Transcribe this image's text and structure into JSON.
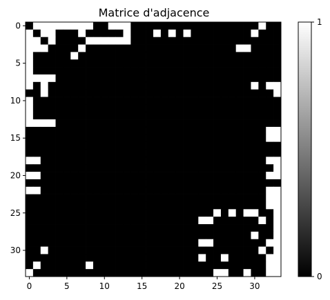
{
  "chart_data": {
    "type": "heatmap",
    "title": "Matrice d'adjacence",
    "xlabel": "",
    "ylabel": "",
    "size": 34,
    "x_ticks": [
      0,
      5,
      10,
      15,
      20,
      25,
      30
    ],
    "y_ticks": [
      0,
      5,
      10,
      15,
      20,
      25,
      30
    ],
    "colorbar": {
      "min": 0,
      "max": 1,
      "ticks": [
        0,
        1
      ],
      "colormap": "gray",
      "low_color": "#000000",
      "high_color": "#ffffff"
    },
    "grid": false,
    "matrix": [
      [
        0,
        1,
        1,
        1,
        1,
        1,
        1,
        1,
        1,
        0,
        0,
        1,
        1,
        1,
        0,
        0,
        0,
        0,
        0,
        0,
        0,
        0,
        0,
        0,
        0,
        0,
        0,
        0,
        0,
        0,
        0,
        1,
        0,
        0
      ],
      [
        1,
        0,
        1,
        1,
        0,
        0,
        0,
        1,
        0,
        0,
        0,
        0,
        0,
        1,
        0,
        0,
        0,
        1,
        0,
        1,
        0,
        1,
        0,
        0,
        0,
        0,
        0,
        0,
        0,
        0,
        1,
        0,
        0,
        0
      ],
      [
        1,
        1,
        0,
        1,
        0,
        0,
        0,
        0,
        1,
        1,
        1,
        1,
        1,
        1,
        0,
        0,
        0,
        0,
        0,
        0,
        0,
        0,
        0,
        0,
        0,
        0,
        0,
        0,
        0,
        0,
        0,
        0,
        0,
        0
      ],
      [
        1,
        1,
        1,
        0,
        0,
        0,
        0,
        1,
        0,
        0,
        0,
        0,
        0,
        0,
        0,
        0,
        0,
        0,
        0,
        0,
        0,
        0,
        0,
        0,
        0,
        0,
        0,
        0,
        1,
        1,
        0,
        0,
        0,
        0
      ],
      [
        1,
        0,
        0,
        0,
        0,
        0,
        1,
        0,
        0,
        0,
        0,
        0,
        0,
        0,
        0,
        0,
        0,
        0,
        0,
        0,
        0,
        0,
        0,
        0,
        0,
        0,
        0,
        0,
        0,
        0,
        0,
        0,
        0,
        0
      ],
      [
        1,
        0,
        0,
        0,
        0,
        0,
        0,
        0,
        0,
        0,
        0,
        0,
        0,
        0,
        0,
        0,
        0,
        0,
        0,
        0,
        0,
        0,
        0,
        0,
        0,
        0,
        0,
        0,
        0,
        0,
        0,
        0,
        0,
        0
      ],
      [
        1,
        0,
        0,
        0,
        0,
        0,
        0,
        0,
        0,
        0,
        0,
        0,
        0,
        0,
        0,
        0,
        0,
        0,
        0,
        0,
        0,
        0,
        0,
        0,
        0,
        0,
        0,
        0,
        0,
        0,
        0,
        0,
        0,
        0
      ],
      [
        1,
        1,
        1,
        1,
        0,
        0,
        0,
        0,
        0,
        0,
        0,
        0,
        0,
        0,
        0,
        0,
        0,
        0,
        0,
        0,
        0,
        0,
        0,
        0,
        0,
        0,
        0,
        0,
        0,
        0,
        0,
        0,
        0,
        0
      ],
      [
        1,
        0,
        1,
        0,
        0,
        0,
        0,
        0,
        0,
        0,
        0,
        0,
        0,
        0,
        0,
        0,
        0,
        0,
        0,
        0,
        0,
        0,
        0,
        0,
        0,
        0,
        0,
        0,
        0,
        0,
        1,
        0,
        1,
        1
      ],
      [
        0,
        0,
        1,
        0,
        0,
        0,
        0,
        0,
        0,
        0,
        0,
        0,
        0,
        0,
        0,
        0,
        0,
        0,
        0,
        0,
        0,
        0,
        0,
        0,
        0,
        0,
        0,
        0,
        0,
        0,
        0,
        0,
        0,
        1
      ],
      [
        1,
        0,
        0,
        0,
        0,
        0,
        0,
        0,
        0,
        0,
        0,
        0,
        0,
        0,
        0,
        0,
        0,
        0,
        0,
        0,
        0,
        0,
        0,
        0,
        0,
        0,
        0,
        0,
        0,
        0,
        0,
        0,
        0,
        0
      ],
      [
        1,
        0,
        0,
        0,
        0,
        0,
        0,
        0,
        0,
        0,
        0,
        0,
        0,
        0,
        0,
        0,
        0,
        0,
        0,
        0,
        0,
        0,
        0,
        0,
        0,
        0,
        0,
        0,
        0,
        0,
        0,
        0,
        0,
        0
      ],
      [
        1,
        0,
        0,
        0,
        0,
        0,
        0,
        0,
        0,
        0,
        0,
        0,
        0,
        0,
        0,
        0,
        0,
        0,
        0,
        0,
        0,
        0,
        0,
        0,
        0,
        0,
        0,
        0,
        0,
        0,
        0,
        0,
        0,
        0
      ],
      [
        1,
        1,
        1,
        1,
        0,
        0,
        0,
        0,
        0,
        0,
        0,
        0,
        0,
        0,
        0,
        0,
        0,
        0,
        0,
        0,
        0,
        0,
        0,
        0,
        0,
        0,
        0,
        0,
        0,
        0,
        0,
        0,
        0,
        0
      ],
      [
        0,
        0,
        0,
        0,
        0,
        0,
        0,
        0,
        0,
        0,
        0,
        0,
        0,
        0,
        0,
        0,
        0,
        0,
        0,
        0,
        0,
        0,
        0,
        0,
        0,
        0,
        0,
        0,
        0,
        0,
        0,
        0,
        1,
        1
      ],
      [
        0,
        0,
        0,
        0,
        0,
        0,
        0,
        0,
        0,
        0,
        0,
        0,
        0,
        0,
        0,
        0,
        0,
        0,
        0,
        0,
        0,
        0,
        0,
        0,
        0,
        0,
        0,
        0,
        0,
        0,
        0,
        0,
        1,
        1
      ],
      [
        0,
        0,
        0,
        0,
        0,
        0,
        0,
        0,
        0,
        0,
        0,
        0,
        0,
        0,
        0,
        0,
        0,
        0,
        0,
        0,
        0,
        0,
        0,
        0,
        0,
        0,
        0,
        0,
        0,
        0,
        0,
        0,
        0,
        0
      ],
      [
        0,
        0,
        0,
        0,
        0,
        0,
        0,
        0,
        0,
        0,
        0,
        0,
        0,
        0,
        0,
        0,
        0,
        0,
        0,
        0,
        0,
        0,
        0,
        0,
        0,
        0,
        0,
        0,
        0,
        0,
        0,
        0,
        0,
        0
      ],
      [
        1,
        1,
        0,
        0,
        0,
        0,
        0,
        0,
        0,
        0,
        0,
        0,
        0,
        0,
        0,
        0,
        0,
        0,
        0,
        0,
        0,
        0,
        0,
        0,
        0,
        0,
        0,
        0,
        0,
        0,
        0,
        0,
        1,
        1
      ],
      [
        0,
        0,
        0,
        0,
        0,
        0,
        0,
        0,
        0,
        0,
        0,
        0,
        0,
        0,
        0,
        0,
        0,
        0,
        0,
        0,
        0,
        0,
        0,
        0,
        0,
        0,
        0,
        0,
        0,
        0,
        0,
        0,
        0,
        1
      ],
      [
        1,
        1,
        0,
        0,
        0,
        0,
        0,
        0,
        0,
        0,
        0,
        0,
        0,
        0,
        0,
        0,
        0,
        0,
        0,
        0,
        0,
        0,
        0,
        0,
        0,
        0,
        0,
        0,
        0,
        0,
        0,
        0,
        1,
        1
      ],
      [
        0,
        0,
        0,
        0,
        0,
        0,
        0,
        0,
        0,
        0,
        0,
        0,
        0,
        0,
        0,
        0,
        0,
        0,
        0,
        0,
        0,
        0,
        0,
        0,
        0,
        0,
        0,
        0,
        0,
        0,
        0,
        0,
        0,
        0
      ],
      [
        1,
        1,
        0,
        0,
        0,
        0,
        0,
        0,
        0,
        0,
        0,
        0,
        0,
        0,
        0,
        0,
        0,
        0,
        0,
        0,
        0,
        0,
        0,
        0,
        0,
        0,
        0,
        0,
        0,
        0,
        0,
        0,
        1,
        1
      ],
      [
        0,
        0,
        0,
        0,
        0,
        0,
        0,
        0,
        0,
        0,
        0,
        0,
        0,
        0,
        0,
        0,
        0,
        0,
        0,
        0,
        0,
        0,
        0,
        0,
        0,
        0,
        0,
        0,
        0,
        0,
        0,
        0,
        1,
        1
      ],
      [
        0,
        0,
        0,
        0,
        0,
        0,
        0,
        0,
        0,
        0,
        0,
        0,
        0,
        0,
        0,
        0,
        0,
        0,
        0,
        0,
        0,
        0,
        0,
        0,
        0,
        0,
        0,
        0,
        0,
        0,
        0,
        0,
        1,
        1
      ],
      [
        0,
        0,
        0,
        0,
        0,
        0,
        0,
        0,
        0,
        0,
        0,
        0,
        0,
        0,
        0,
        0,
        0,
        0,
        0,
        0,
        0,
        0,
        0,
        0,
        0,
        1,
        0,
        1,
        0,
        1,
        1,
        0,
        0,
        1
      ],
      [
        0,
        0,
        0,
        0,
        0,
        0,
        0,
        0,
        0,
        0,
        0,
        0,
        0,
        0,
        0,
        0,
        0,
        0,
        0,
        0,
        0,
        0,
        0,
        1,
        1,
        0,
        0,
        0,
        0,
        0,
        0,
        1,
        0,
        1
      ],
      [
        0,
        0,
        0,
        0,
        0,
        0,
        0,
        0,
        0,
        0,
        0,
        0,
        0,
        0,
        0,
        0,
        0,
        0,
        0,
        0,
        0,
        0,
        0,
        0,
        0,
        0,
        0,
        0,
        0,
        0,
        0,
        0,
        0,
        1
      ],
      [
        0,
        0,
        0,
        0,
        0,
        0,
        0,
        0,
        0,
        0,
        0,
        0,
        0,
        0,
        0,
        0,
        0,
        0,
        0,
        0,
        0,
        0,
        0,
        0,
        0,
        0,
        0,
        0,
        0,
        0,
        1,
        0,
        0,
        1
      ],
      [
        0,
        0,
        0,
        0,
        0,
        0,
        0,
        0,
        0,
        0,
        0,
        0,
        0,
        0,
        0,
        0,
        0,
        0,
        0,
        0,
        0,
        0,
        0,
        1,
        1,
        0,
        0,
        0,
        0,
        0,
        0,
        0,
        1,
        1
      ],
      [
        0,
        0,
        1,
        0,
        0,
        0,
        0,
        0,
        0,
        0,
        0,
        0,
        0,
        0,
        0,
        0,
        0,
        0,
        0,
        0,
        0,
        0,
        0,
        0,
        0,
        0,
        0,
        0,
        0,
        0,
        0,
        1,
        0,
        1
      ],
      [
        0,
        0,
        0,
        0,
        0,
        0,
        0,
        0,
        0,
        0,
        0,
        0,
        0,
        0,
        0,
        0,
        0,
        0,
        0,
        0,
        0,
        0,
        0,
        1,
        0,
        0,
        1,
        0,
        0,
        0,
        0,
        0,
        1,
        1
      ],
      [
        0,
        1,
        0,
        0,
        0,
        0,
        0,
        0,
        1,
        0,
        0,
        0,
        0,
        0,
        0,
        0,
        0,
        0,
        0,
        0,
        0,
        0,
        0,
        0,
        0,
        0,
        0,
        0,
        0,
        0,
        0,
        0,
        1,
        1
      ],
      [
        1,
        0,
        0,
        0,
        0,
        0,
        0,
        0,
        0,
        0,
        0,
        0,
        0,
        0,
        0,
        0,
        0,
        0,
        0,
        0,
        0,
        0,
        0,
        0,
        0,
        1,
        1,
        0,
        0,
        1,
        0,
        0,
        1,
        1
      ]
    ]
  }
}
